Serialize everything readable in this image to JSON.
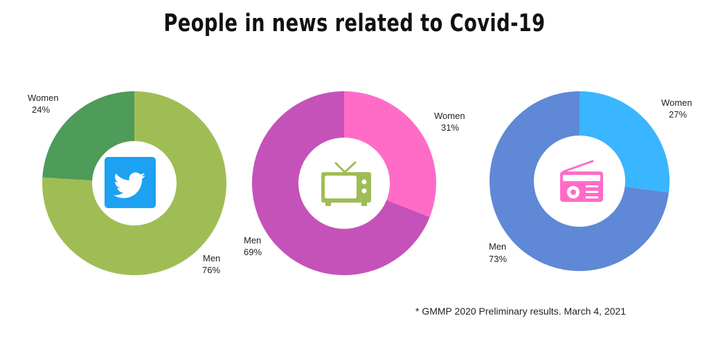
{
  "title": "People in news related to Covid-19",
  "footnote": "* GMMP 2020 Preliminary results. March 4, 2021",
  "chart_data": [
    {
      "type": "pie",
      "icon": "twitter-icon",
      "categories": [
        "Women",
        "Men"
      ],
      "values": [
        24,
        76
      ],
      "value_labels": [
        "24%",
        "76%"
      ],
      "colors": [
        "#4e9b5a",
        "#a0bd55"
      ]
    },
    {
      "type": "pie",
      "icon": "tv-icon",
      "categories": [
        "Women",
        "Men"
      ],
      "values": [
        31,
        69
      ],
      "value_labels": [
        "31%",
        "69%"
      ],
      "colors": [
        "#ff6cc8",
        "#c552b8"
      ]
    },
    {
      "type": "pie",
      "icon": "radio-icon",
      "categories": [
        "Women",
        "Men"
      ],
      "values": [
        27,
        73
      ],
      "value_labels": [
        "27%",
        "73%"
      ],
      "colors": [
        "#3ab5ff",
        "#5f88d6"
      ]
    }
  ]
}
